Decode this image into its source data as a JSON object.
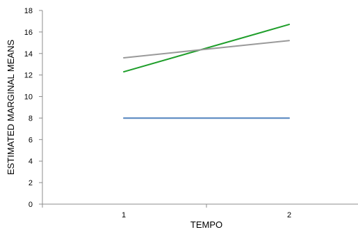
{
  "chart_data": {
    "type": "line",
    "title": "",
    "xlabel": "TEMPO",
    "ylabel": "ESTIMATED MARGINAL MEANS",
    "categories": [
      "1",
      "2"
    ],
    "ylim": [
      0,
      18
    ],
    "yticks": [
      0,
      2,
      4,
      6,
      8,
      10,
      12,
      14,
      16,
      18
    ],
    "grid": false,
    "legend": "none",
    "series": [
      {
        "color": "#1e9e2a",
        "values": [
          12.3,
          16.7
        ]
      },
      {
        "color": "#9a9a9a",
        "values": [
          13.6,
          15.2
        ]
      },
      {
        "color": "#4f81bd",
        "values": [
          8.0,
          8.0
        ]
      }
    ]
  }
}
